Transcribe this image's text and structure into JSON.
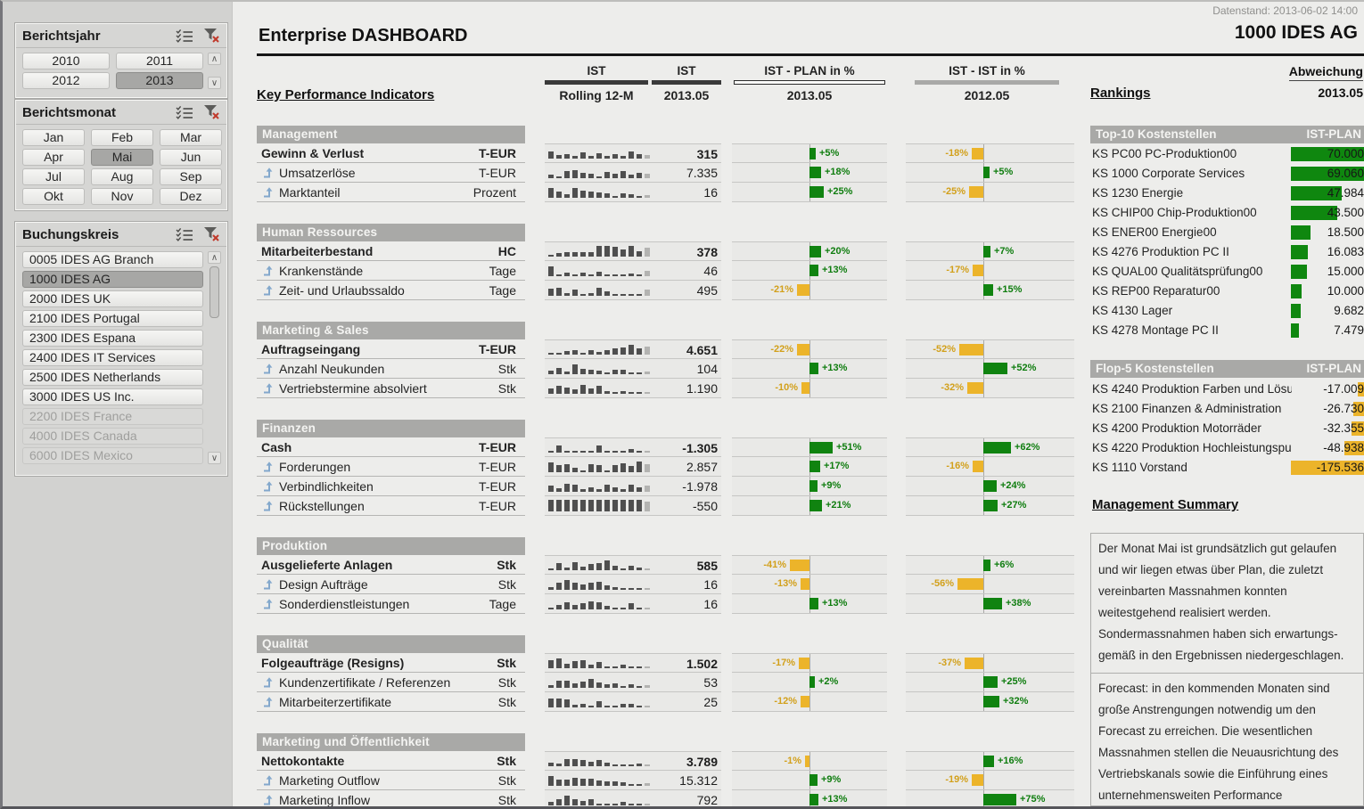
{
  "window": {
    "datenstand": "Datenstand: 2013-06-02 14:00"
  },
  "header": {
    "title": "Enterprise DASHBOARD",
    "company": "1000 IDES AG"
  },
  "colors": {
    "green": "#0f870f",
    "amber": "#ecb42a",
    "band_gray": "#a9a9a7",
    "spark_dark": "#4f4f4f",
    "spark_last": "#b3b3b1"
  },
  "slicers": [
    {
      "id": "jahr",
      "title": "Berichtsjahr",
      "cols": 2,
      "scrollbar": true,
      "thumb": false,
      "items": [
        {
          "label": "2010"
        },
        {
          "label": "2011"
        },
        {
          "label": "2012"
        },
        {
          "label": "2013",
          "state": "selected"
        }
      ]
    },
    {
      "id": "monat",
      "title": "Berichtsmonat",
      "cols": 3,
      "scrollbar": false,
      "thumb": false,
      "items": [
        {
          "label": "Jan"
        },
        {
          "label": "Feb"
        },
        {
          "label": "Mar"
        },
        {
          "label": "Apr"
        },
        {
          "label": "Mai",
          "state": "selected"
        },
        {
          "label": "Jun"
        },
        {
          "label": "Jul"
        },
        {
          "label": "Aug"
        },
        {
          "label": "Sep"
        },
        {
          "label": "Okt"
        },
        {
          "label": "Nov"
        },
        {
          "label": "Dez"
        }
      ]
    },
    {
      "id": "bk",
      "title": "Buchungskreis",
      "cols": 1,
      "scrollbar": true,
      "thumb": true,
      "items": [
        {
          "label": "0005 IDES AG Branch"
        },
        {
          "label": "1000 IDES AG",
          "state": "selected"
        },
        {
          "label": "2000 IDES UK"
        },
        {
          "label": "2100 IDES Portugal"
        },
        {
          "label": "2300 IDES Espana"
        },
        {
          "label": "2400 IDES IT Services"
        },
        {
          "label": "2500 IDES Netherlands"
        },
        {
          "label": "3000 IDES US Inc."
        },
        {
          "label": "2200 IDES France",
          "state": "disabled"
        },
        {
          "label": "4000 IDES Canada",
          "state": "disabled"
        },
        {
          "label": "6000 IDES Mexico",
          "state": "disabled"
        }
      ]
    }
  ],
  "columns": {
    "kpi_title": "Key Performance Indicators",
    "groups": [
      {
        "top": "IST",
        "sub": "Rolling 12-M",
        "bar": "dark"
      },
      {
        "top": "IST",
        "sub": "2013.05",
        "bar": "dark"
      },
      {
        "top": "IST - PLAN in %",
        "sub": "2013.05",
        "bar": "white"
      },
      {
        "top": "IST - IST in %",
        "sub": "2012.05",
        "bar": "gray"
      }
    ]
  },
  "sections": [
    {
      "name": "Management",
      "rows": [
        {
          "label": "Gewinn & Verlust",
          "unit": "T-EUR",
          "bold": true,
          "value": "315",
          "plan": 5,
          "ist": -18,
          "spark": [
            55,
            25,
            35,
            18,
            45,
            20,
            40,
            18,
            30,
            22,
            55,
            35,
            25
          ]
        },
        {
          "label": "Umsatzerlöse",
          "unit": "T-EUR",
          "bold": false,
          "value": "7.335",
          "plan": 18,
          "ist": 5,
          "spark": [
            25,
            10,
            50,
            60,
            38,
            30,
            10,
            45,
            30,
            55,
            25,
            40,
            30
          ]
        },
        {
          "label": "Marktanteil",
          "unit": "Prozent",
          "bold": false,
          "value": "16",
          "plan": 25,
          "ist": -25,
          "spark": [
            70,
            45,
            25,
            75,
            55,
            48,
            42,
            30,
            12,
            32,
            28,
            6,
            18
          ]
        }
      ]
    },
    {
      "name": "Human Ressources",
      "rows": [
        {
          "label": "Mitarbeiterbestand",
          "unit": "HC",
          "bold": true,
          "value": "378",
          "plan": 20,
          "ist": 7,
          "spark": [
            4,
            28,
            30,
            32,
            32,
            36,
            78,
            80,
            72,
            52,
            78,
            42,
            68
          ]
        },
        {
          "label": "Krankenstände",
          "unit": "Tage",
          "bold": false,
          "value": "46",
          "plan": 13,
          "ist": -17,
          "spark": [
            70,
            12,
            25,
            6,
            28,
            6,
            35,
            6,
            15,
            15,
            18,
            15,
            40
          ]
        },
        {
          "label": "Zeit- und Urlaubssaldo",
          "unit": "Tage",
          "bold": false,
          "value": "495",
          "plan": -21,
          "ist": 15,
          "spark": [
            55,
            62,
            18,
            48,
            12,
            18,
            60,
            35,
            8,
            4,
            4,
            4,
            45
          ]
        }
      ]
    },
    {
      "name": "Marketing & Sales",
      "rows": [
        {
          "label": "Auftragseingang",
          "unit": "T-EUR",
          "bold": true,
          "value": "4.651",
          "plan": -22,
          "ist": -52,
          "spark": [
            5,
            6,
            25,
            30,
            10,
            35,
            18,
            30,
            48,
            55,
            75,
            45,
            60
          ]
        },
        {
          "label": "Anzahl Neukunden",
          "unit": "Stk",
          "bold": false,
          "value": "104",
          "plan": 13,
          "ist": 52,
          "spark": [
            25,
            48,
            20,
            70,
            42,
            30,
            25,
            8,
            30,
            35,
            15,
            8,
            20
          ]
        },
        {
          "label": "Vertriebstermine absolviert",
          "unit": "Stk",
          "bold": false,
          "value": "1.190",
          "plan": -10,
          "ist": -32,
          "spark": [
            38,
            58,
            45,
            30,
            65,
            42,
            62,
            20,
            6,
            20,
            6,
            6,
            10
          ]
        }
      ]
    },
    {
      "name": "Finanzen",
      "rows": [
        {
          "label": "Cash",
          "unit": "T-EUR",
          "bold": true,
          "value": "-1.305",
          "plan": 51,
          "ist": 62,
          "spark": [
            12,
            55,
            8,
            8,
            6,
            10,
            50,
            12,
            8,
            6,
            25,
            6,
            15
          ]
        },
        {
          "label": "Forderungen",
          "unit": "T-EUR",
          "bold": false,
          "value": "2.857",
          "plan": 17,
          "ist": -16,
          "spark": [
            75,
            52,
            60,
            30,
            10,
            58,
            55,
            8,
            52,
            68,
            45,
            80,
            60
          ]
        },
        {
          "label": "Verbindlichkeiten",
          "unit": "T-EUR",
          "bold": false,
          "value": "-1.978",
          "plan": 9,
          "ist": 24,
          "spark": [
            45,
            28,
            60,
            55,
            22,
            35,
            18,
            55,
            35,
            18,
            50,
            35,
            45
          ]
        },
        {
          "label": "Rückstellungen",
          "unit": "T-EUR",
          "bold": false,
          "value": "-550",
          "plan": 21,
          "ist": 27,
          "spark": [
            85,
            85,
            85,
            85,
            85,
            85,
            85,
            85,
            85,
            85,
            85,
            85,
            75
          ]
        }
      ]
    },
    {
      "name": "Produktion",
      "rows": [
        {
          "label": "Ausgelieferte Anlagen",
          "unit": "Stk",
          "bold": true,
          "value": "585",
          "plan": -41,
          "ist": 6,
          "spark": [
            15,
            50,
            22,
            62,
            25,
            45,
            55,
            72,
            32,
            8,
            35,
            20,
            10
          ]
        },
        {
          "label": "Design Aufträge",
          "unit": "Stk",
          "bold": false,
          "value": "16",
          "plan": -13,
          "ist": -56,
          "spark": [
            20,
            55,
            72,
            55,
            40,
            55,
            62,
            35,
            18,
            6,
            10,
            6,
            6
          ]
        },
        {
          "label": "Sonderdienstleistungen",
          "unit": "Tage",
          "bold": false,
          "value": "16",
          "plan": 13,
          "ist": 38,
          "spark": [
            15,
            35,
            55,
            35,
            45,
            62,
            55,
            28,
            6,
            6,
            45,
            6,
            5
          ]
        }
      ]
    },
    {
      "name": "Qualität",
      "rows": [
        {
          "label": "Folgeaufträge (Resigns)",
          "unit": "Stk",
          "bold": true,
          "value": "1.502",
          "plan": -17,
          "ist": -37,
          "spark": [
            60,
            75,
            35,
            55,
            60,
            28,
            45,
            8,
            6,
            28,
            6,
            5,
            5
          ]
        },
        {
          "label": "Kundenzertifikate / Referenzen",
          "unit": "Stk",
          "bold": false,
          "value": "53",
          "plan": 2,
          "ist": 25,
          "spark": [
            20,
            55,
            55,
            30,
            45,
            65,
            40,
            25,
            30,
            8,
            25,
            5,
            20
          ]
        },
        {
          "label": "Mitarbeiterzertifikate",
          "unit": "Stk",
          "bold": false,
          "value": "25",
          "plan": -12,
          "ist": 32,
          "spark": [
            68,
            68,
            60,
            18,
            25,
            6,
            45,
            6,
            6,
            28,
            28,
            6,
            5
          ]
        }
      ]
    },
    {
      "name": "Marketing und Öffentlichkeit",
      "rows": [
        {
          "label": "Nettokontakte",
          "unit": "Stk",
          "bold": true,
          "value": "3.789",
          "plan": -1,
          "ist": 16,
          "spark": [
            25,
            20,
            55,
            55,
            45,
            30,
            45,
            25,
            8,
            5,
            8,
            20,
            15
          ]
        },
        {
          "label": "Marketing Outflow",
          "unit": "Stk",
          "bold": false,
          "value": "15.312",
          "plan": 9,
          "ist": -19,
          "spark": [
            70,
            45,
            45,
            60,
            55,
            55,
            40,
            30,
            35,
            25,
            8,
            8,
            20
          ]
        },
        {
          "label": "Marketing Inflow",
          "unit": "Stk",
          "bold": false,
          "value": "792",
          "plan": 13,
          "ist": 75,
          "spark": [
            25,
            45,
            70,
            45,
            35,
            45,
            8,
            5,
            8,
            25,
            8,
            15,
            5
          ]
        }
      ]
    }
  ],
  "rankings": {
    "title": "Rankings",
    "abweichung_label": "Abweichung",
    "abweichung_period": "2013.05",
    "top10": {
      "title": "Top-10 Kostenstellen",
      "header": "IST-PLAN",
      "max": 70000,
      "rows": [
        {
          "label": "KS PC00 PC-Produktion00",
          "value": "70.000",
          "num": 70000
        },
        {
          "label": "KS 1000 Corporate Services",
          "value": "69.060",
          "num": 69060
        },
        {
          "label": "KS 1230 Energie",
          "value": "47.984",
          "num": 47984
        },
        {
          "label": "KS CHIP00 Chip-Produktion00",
          "value": "43.500",
          "num": 43500
        },
        {
          "label": "KS ENER00 Energie00",
          "value": "18.500",
          "num": 18500
        },
        {
          "label": "KS 4276 Produktion PC II",
          "value": "16.083",
          "num": 16083
        },
        {
          "label": "KS QUAL00 Qualitätsprüfung00",
          "value": "15.000",
          "num": 15000
        },
        {
          "label": "KS REP00 Reparatur00",
          "value": "10.000",
          "num": 10000
        },
        {
          "label": "KS 4130 Lager",
          "value": "9.682",
          "num": 9682
        },
        {
          "label": "KS 4278 Montage PC II",
          "value": "7.479",
          "num": 7479
        }
      ]
    },
    "flop5": {
      "title": "Flop-5 Kostenstellen",
      "header": "IST-PLAN",
      "max": 175536,
      "rows": [
        {
          "label": "KS 4240 Produktion Farben und Lösu",
          "value": "-17.009",
          "num": 17009
        },
        {
          "label": "KS 2100 Finanzen & Administration",
          "value": "-26.730",
          "num": 26730
        },
        {
          "label": "KS 4200 Produktion Motorräder",
          "value": "-32.355",
          "num": 32355
        },
        {
          "label": "KS 4220 Produktion Hochleistungspu",
          "value": "-48.938",
          "num": 48938
        },
        {
          "label": "KS 1110 Vorstand",
          "value": "-175.536",
          "num": 175536
        }
      ]
    },
    "summary": {
      "title": "Management Summary",
      "p1": "Der Monat Mai ist grundsätzlich gut gelaufen und wir liegen etwas über Plan, die zuletzt vereinbarten Massnahmen konnten weitestgehend realisiert werden. Sondermassnahmen haben sich erwartungs-gemäß in den Ergebnissen niedergeschlagen.",
      "p2": "Forecast: in den kommenden Monaten sind große Anstrengungen notwendig um den Forecast zu erreichen. Die wesentlichen Massnahmen stellen die Neuausrichtung des Vertriebskanals sowie die Einführung eines unternehmensweiten Performance Managements dar."
    }
  }
}
